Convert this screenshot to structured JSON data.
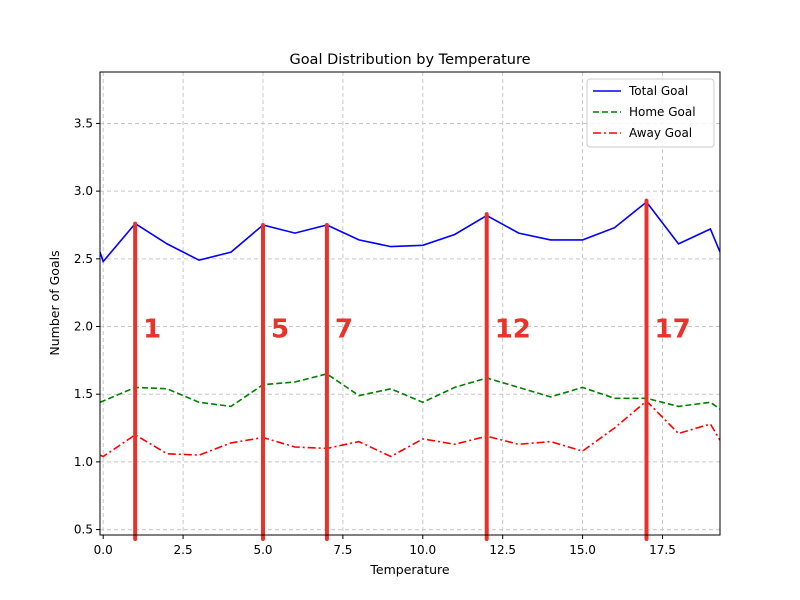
{
  "chart_data": {
    "type": "line",
    "title": "Goal Distribution by Temperature",
    "xlabel": "Temperature",
    "ylabel": "Number of Goals",
    "xlim": [
      -0.1,
      19.3
    ],
    "ylim": [
      0.46,
      3.88
    ],
    "xticks": [
      0,
      2.5,
      5,
      7.5,
      10,
      12.5,
      15,
      17.5
    ],
    "xtick_labels": [
      "0.0",
      "2.5",
      "5.0",
      "7.5",
      "10.0",
      "12.5",
      "15.0",
      "17.5"
    ],
    "yticks": [
      0.5,
      1.0,
      1.5,
      2.0,
      2.5,
      3.0,
      3.5
    ],
    "ytick_labels": [
      "0.5",
      "1.0",
      "1.5",
      "2.0",
      "2.5",
      "3.0",
      "3.5"
    ],
    "grid": true,
    "legend_position": "top-right",
    "x": [
      -0.1,
      0,
      1,
      2,
      3,
      4,
      5,
      6,
      7,
      8,
      9,
      10,
      11,
      12,
      13,
      14,
      15,
      16,
      17,
      18,
      19,
      19.3
    ],
    "series": [
      {
        "name": "Total Goal",
        "color": "#0000ff",
        "style": "solid",
        "values": [
          2.55,
          2.48,
          2.76,
          2.61,
          2.49,
          2.55,
          2.75,
          2.69,
          2.75,
          2.64,
          2.59,
          2.6,
          2.68,
          2.82,
          2.69,
          2.64,
          2.64,
          2.73,
          2.92,
          2.61,
          2.72,
          2.55
        ]
      },
      {
        "name": "Home Goal",
        "color": "#008000",
        "style": "dashed",
        "values": [
          1.44,
          1.45,
          1.55,
          1.54,
          1.44,
          1.41,
          1.57,
          1.59,
          1.65,
          1.49,
          1.54,
          1.44,
          1.55,
          1.62,
          1.55,
          1.48,
          1.55,
          1.47,
          1.47,
          1.41,
          1.44,
          1.39
        ]
      },
      {
        "name": "Away Goal",
        "color": "#ff0000",
        "style": "dashdot",
        "values": [
          1.05,
          1.04,
          1.2,
          1.06,
          1.05,
          1.14,
          1.18,
          1.11,
          1.1,
          1.15,
          1.04,
          1.17,
          1.13,
          1.19,
          1.13,
          1.15,
          1.08,
          1.25,
          1.45,
          1.21,
          1.28,
          1.16
        ]
      }
    ],
    "annotations": {
      "color": "#e8322a",
      "markers": [
        {
          "x": 1,
          "y_top": 2.76,
          "label": "1"
        },
        {
          "x": 5,
          "y_top": 2.75,
          "label": "5"
        },
        {
          "x": 7,
          "y_top": 2.75,
          "label": "7"
        },
        {
          "x": 12,
          "y_top": 2.83,
          "label": "12"
        },
        {
          "x": 17,
          "y_top": 2.93,
          "label": "17"
        }
      ]
    }
  }
}
